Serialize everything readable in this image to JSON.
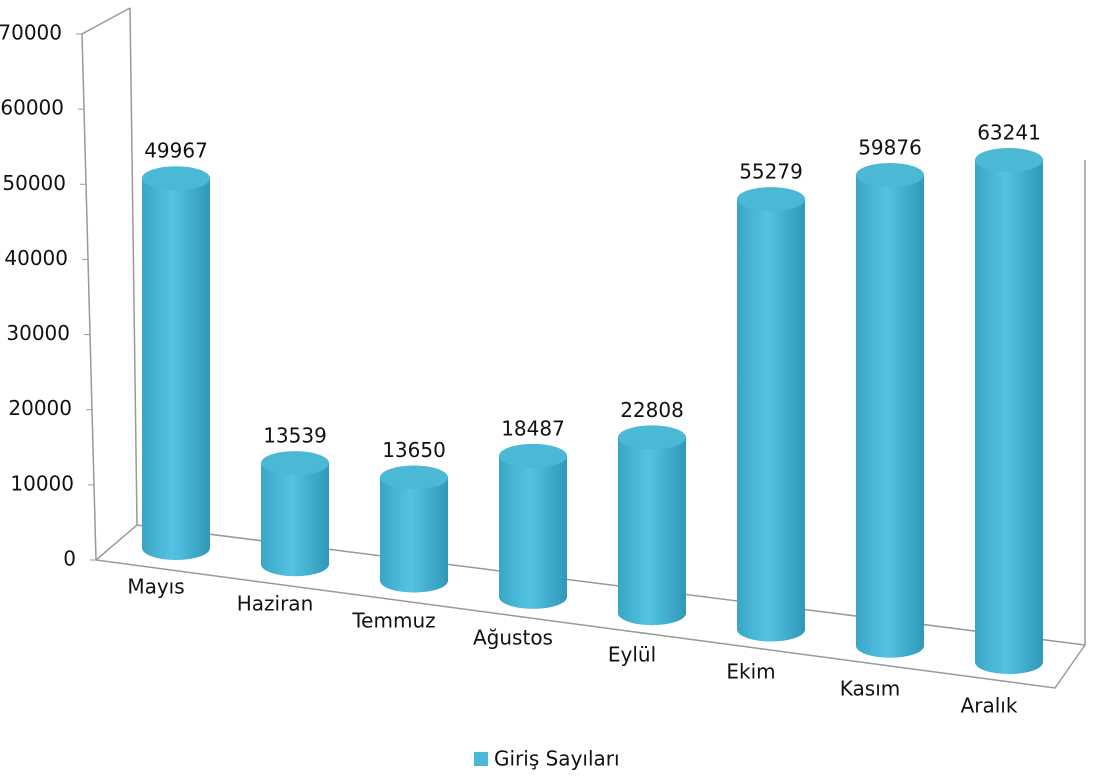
{
  "chart_data": {
    "type": "bar",
    "categories": [
      "Mayıs",
      "Haziran",
      "Temmuz",
      "Ağustos",
      "Eylül",
      "Ekim",
      "Kasım",
      "Aralık"
    ],
    "series": [
      {
        "name": "Giriş Sayıları",
        "color": "#4bb8d6",
        "values": [
          49967,
          13539,
          13650,
          18487,
          22808,
          55279,
          59876,
          63241
        ]
      }
    ],
    "ylim": [
      0,
      70000
    ],
    "yticks": [
      0,
      10000,
      20000,
      30000,
      40000,
      50000,
      60000,
      70000
    ],
    "legend": "bottom"
  }
}
